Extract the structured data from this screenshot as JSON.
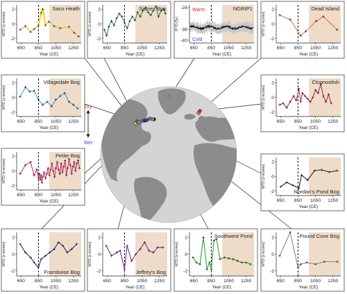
{
  "colors": {
    "shade": "#eedcc9",
    "ocean": "#d4d4d4",
    "land": "#8c8c8c",
    "frame": "#444444",
    "dry": "#d62728",
    "wet": "#2a52be",
    "connector": "#222222"
  },
  "globe": {
    "dry_label": "Dry",
    "wet_label": "Wet",
    "arrow_icon": "double-vertical-arrow-icon"
  },
  "chart_data": [
    {
      "id": "saco",
      "type": "line",
      "title": "Saco Heath",
      "color": "#e8b422",
      "ylabel": "WTD (z-scores)",
      "xlabel": "Year (CE)",
      "xticks": [
        650,
        850,
        1050,
        1250
      ],
      "yticks": [
        -2,
        0,
        2
      ],
      "xlim": [
        600,
        1340
      ],
      "ylim": [
        -2.6,
        2.6
      ],
      "dashed_x": 850,
      "shade": [
        975,
        1340
      ],
      "x": [
        640,
        700,
        760,
        800,
        850,
        880,
        900,
        930,
        970,
        1030,
        1100,
        1200,
        1260,
        1310
      ],
      "y": [
        -0.8,
        -0.3,
        -1.1,
        -0.7,
        -0.2,
        1.5,
        2.0,
        -0.2,
        0.3,
        -0.3,
        -0.6,
        -0.4,
        -1.2,
        -1.7
      ],
      "highlight_x": [
        850,
        930
      ]
    },
    {
      "id": "sidney",
      "type": "line",
      "title": "Sidney Bog",
      "color": "#2e8b57",
      "ylabel": "WTD (z-scores)",
      "xlabel": "Year (CE)",
      "xticks": [
        650,
        850,
        1050,
        1250
      ],
      "yticks": [
        -2,
        0,
        2
      ],
      "xlim": [
        600,
        1340
      ],
      "ylim": [
        -2.6,
        2.6
      ],
      "dashed_x": 850,
      "shade": [
        975,
        1340
      ],
      "x": [
        620,
        645,
        670,
        700,
        730,
        760,
        790,
        820,
        850,
        880,
        910,
        940,
        970,
        1000,
        1030,
        1060,
        1090,
        1120,
        1150,
        1180,
        1210,
        1240,
        1270,
        1300,
        1320
      ],
      "y": [
        -0.8,
        -1.6,
        -0.4,
        0.4,
        -0.2,
        0.8,
        1.4,
        1.0,
        0.2,
        -0.6,
        0.4,
        1.0,
        0.5,
        1.6,
        1.0,
        1.8,
        2.2,
        1.6,
        1.2,
        1.8,
        2.4,
        1.0,
        1.8,
        2.0,
        1.4
      ]
    },
    {
      "id": "ngrip",
      "type": "line",
      "title": "NGRIP1",
      "color": "#111111",
      "ylabel": "δ¹⁸O (‰)",
      "xlabel": "Year (CE)",
      "xticks": [
        650,
        850,
        1050,
        1250
      ],
      "yticks": [
        -28,
        -36,
        -40
      ],
      "xlim": [
        600,
        1340
      ],
      "ylim": [
        -41,
        -27
      ],
      "dashed_x": 850,
      "shade": [
        975,
        1340
      ],
      "warm_label": "Warm",
      "cold_label": "Cold",
      "noisy": true,
      "mean": -35.3,
      "amp": 0.7,
      "spread": 2.2
    },
    {
      "id": "dead",
      "type": "line",
      "title": "Dead Island",
      "color": "#e8762c",
      "ylabel": "WTD (z-scores)",
      "xlabel": "Year (CE)",
      "xticks": [
        650,
        850,
        1050,
        1250
      ],
      "yticks": [
        -2,
        0,
        2
      ],
      "xlim": [
        600,
        1340
      ],
      "ylim": [
        -2.6,
        2.6
      ],
      "dashed_x": 850,
      "shade": [
        975,
        1340
      ],
      "x": [
        640,
        760,
        880,
        940,
        1060,
        1140,
        1300
      ],
      "y": [
        1.2,
        0.6,
        -1.6,
        -1.0,
        0.4,
        1.0,
        -0.8
      ]
    },
    {
      "id": "villagedale",
      "type": "line",
      "title": "Villagedale Bog",
      "color": "#2ea8e0",
      "ylabel": "WTD (z-scores)",
      "xlabel": "Year (CE)",
      "xticks": [
        650,
        850,
        1050,
        1250
      ],
      "yticks": [
        -2,
        0,
        2
      ],
      "xlim": [
        600,
        1340
      ],
      "ylim": [
        -2.6,
        2.6
      ],
      "dashed_x": 850,
      "shade": [
        975,
        1340
      ],
      "x": [
        640,
        700,
        750,
        800,
        850,
        900,
        950,
        1000,
        1050,
        1100,
        1150,
        1200,
        1250,
        1300
      ],
      "y": [
        0.1,
        1.4,
        0.8,
        0.9,
        -0.3,
        -1.0,
        -0.6,
        -1.2,
        -0.3,
        0.2,
        0.6,
        -0.6,
        -1.0,
        -1.5
      ]
    },
    {
      "id": "cloonoolish",
      "type": "line",
      "title": "Cloonoolish",
      "color": "#b5334a",
      "ylabel": "WTD (z-scores)",
      "xlabel": "Year (CE)",
      "xticks": [
        650,
        850,
        1050,
        1250
      ],
      "yticks": [
        -2,
        0,
        2
      ],
      "xlim": [
        600,
        1340
      ],
      "ylim": [
        -2.6,
        2.6
      ],
      "dashed_x": 850,
      "shade": [
        975,
        1340
      ],
      "x": [
        640,
        680,
        720,
        760,
        800,
        830,
        860,
        880,
        900,
        930,
        960,
        990,
        1020,
        1050,
        1080,
        1110,
        1140,
        1170,
        1200,
        1230
      ],
      "y": [
        -1.0,
        -0.8,
        -1.4,
        -0.6,
        0.2,
        -0.4,
        1.2,
        -0.6,
        0.6,
        0.2,
        -0.2,
        -0.6,
        0.0,
        1.0,
        0.6,
        1.8,
        0.2,
        -0.6,
        0.4,
        -0.8
      ]
    },
    {
      "id": "petite",
      "type": "line",
      "title": "Petite Bog",
      "color": "#d6307a",
      "ylabel": "WTD (z-scores)",
      "xlabel": "Year (CE)",
      "xticks": [
        650,
        850,
        1050,
        1250
      ],
      "yticks": [
        -2,
        0,
        2
      ],
      "xlim": [
        600,
        1340
      ],
      "ylim": [
        -2.6,
        2.6
      ],
      "dashed_x": 850,
      "shade": [
        975,
        1340
      ],
      "x": [
        640,
        700,
        760,
        800,
        830,
        850,
        860,
        870,
        880,
        890,
        900,
        915,
        930,
        945,
        960,
        975,
        990,
        1005,
        1020,
        1035,
        1050,
        1065,
        1080,
        1095,
        1110,
        1125,
        1140,
        1155,
        1170,
        1185,
        1200,
        1215,
        1230,
        1245,
        1260,
        1275,
        1290,
        1305,
        1320
      ],
      "y": [
        -0.4,
        0.8,
        1.2,
        -0.6,
        0.2,
        -1.0,
        -0.4,
        -1.2,
        -0.6,
        -1.6,
        -0.8,
        -0.2,
        -1.0,
        -0.4,
        0.4,
        -0.6,
        0.2,
        1.0,
        0.0,
        -0.8,
        0.4,
        1.2,
        0.2,
        -0.4,
        1.0,
        -0.2,
        0.6,
        1.4,
        -0.6,
        0.4,
        1.6,
        0.8,
        -0.4,
        0.6,
        1.2,
        0.0,
        1.0,
        1.4,
        0.4
      ]
    },
    {
      "id": "nordan",
      "type": "line",
      "title": "Nordan's Pond Bog",
      "color": "#222222",
      "ylabel": "WTD (z-scores)",
      "xlabel": "Year (CE)",
      "xticks": [
        650,
        850,
        1050,
        1250
      ],
      "yticks": [
        -2,
        0,
        2
      ],
      "xlim": [
        600,
        1340
      ],
      "ylim": [
        -2.6,
        2.6
      ],
      "dashed_x": 850,
      "shade": [
        975,
        1340
      ],
      "x": [
        650,
        720,
        790,
        860,
        890,
        960,
        1040,
        1120,
        1210,
        1300
      ],
      "y": [
        -1.4,
        -0.8,
        -1.2,
        -1.6,
        0.2,
        -0.5,
        0.8,
        0.9,
        0.6,
        0.8
      ]
    },
    {
      "id": "framboise",
      "type": "line",
      "title": "Framboise Bog",
      "color": "#1a2e7a",
      "ylabel": "WTD (z-scores)",
      "xlabel": "Year (CE)",
      "xticks": [
        650,
        850,
        1050,
        1250
      ],
      "yticks": [
        -2,
        0,
        2
      ],
      "xlim": [
        600,
        1340
      ],
      "ylim": [
        -2.6,
        2.6
      ],
      "dashed_x": 850,
      "shade": [
        975,
        1340
      ],
      "x": [
        640,
        700,
        760,
        800,
        850,
        880,
        930,
        980,
        1030,
        1080,
        1130,
        1180,
        1230,
        1290
      ],
      "y": [
        1.2,
        0.2,
        -0.4,
        -1.0,
        -1.6,
        -0.6,
        -0.2,
        0.2,
        0.6,
        1.4,
        1.0,
        0.2,
        0.6,
        1.2
      ]
    },
    {
      "id": "jeffrey",
      "type": "line",
      "title": "Jeffrey's Bog",
      "color": "#7a2ea8",
      "ylabel": "WTD (z-scores)",
      "xlabel": "Year (CE)",
      "xticks": [
        650,
        850,
        1050,
        1250
      ],
      "yticks": [
        -2,
        0,
        2
      ],
      "xlim": [
        600,
        1340
      ],
      "ylim": [
        -2.6,
        2.6
      ],
      "dashed_x": 850,
      "shade": [
        975,
        1340
      ],
      "x": [
        640,
        700,
        760,
        800,
        850,
        880,
        930,
        980,
        1030,
        1080,
        1130,
        1180,
        1230,
        1290
      ],
      "y": [
        1.0,
        -0.2,
        0.2,
        0.4,
        -1.8,
        1.0,
        -0.8,
        0.0,
        0.6,
        1.4,
        0.4,
        0.2,
        0.8,
        0.8
      ]
    },
    {
      "id": "southwest",
      "type": "line",
      "title": "Southwest Pond",
      "color": "#2ca02c",
      "ylabel": "WTD (z-scores)",
      "xlabel": "Year (CE)",
      "xticks": [
        650,
        850,
        1050,
        1250
      ],
      "yticks": [
        -2,
        0,
        2
      ],
      "xlim": [
        600,
        1340
      ],
      "ylim": [
        -2.6,
        2.6
      ],
      "dashed_x": 850,
      "shade": [
        975,
        1340
      ],
      "x": [
        640,
        680,
        720,
        760,
        800,
        830,
        850,
        880,
        910,
        950,
        1000,
        1050,
        1100,
        1150,
        1200,
        1250,
        1300
      ],
      "y": [
        -0.4,
        -1.0,
        -1.2,
        2.0,
        -1.8,
        -1.0,
        -1.8,
        1.6,
        1.8,
        -0.6,
        -0.4,
        -0.5,
        -0.6,
        -0.8,
        -1.0,
        -1.0,
        -1.2
      ]
    },
    {
      "id": "poundcove",
      "type": "line",
      "title": "Pound Cove Bog",
      "color": "#888888",
      "ylabel": "WTD (z-scores)",
      "xlabel": "Year (CE)",
      "xticks": [
        650,
        850,
        1050,
        1250
      ],
      "yticks": [
        -2,
        0,
        2
      ],
      "xlim": [
        600,
        1340
      ],
      "ylim": [
        -2.6,
        2.6
      ],
      "dashed_x": 850,
      "shade": [
        975,
        1340
      ],
      "x": [
        640,
        760,
        850,
        880,
        950,
        1050,
        1150,
        1300
      ],
      "y": [
        -0.2,
        2.6,
        -1.6,
        -1.2,
        -1.0,
        -1.2,
        -0.9,
        -0.9
      ]
    }
  ]
}
